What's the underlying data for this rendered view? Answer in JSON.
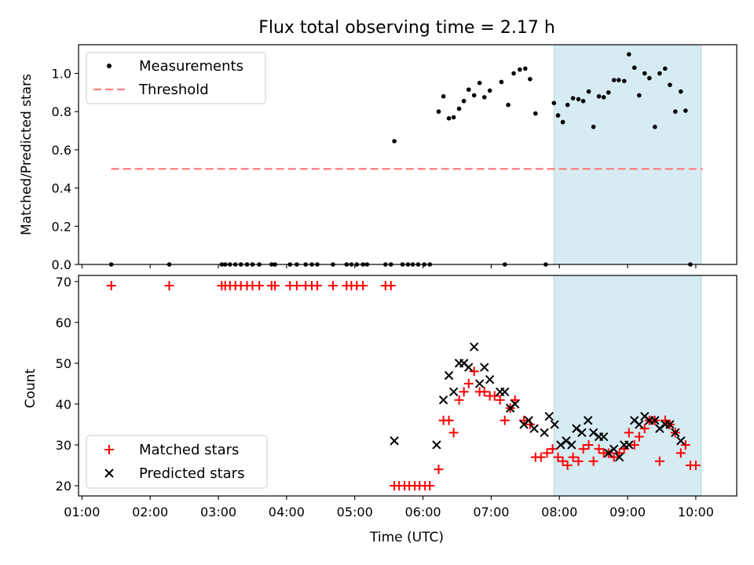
{
  "chart_data": [
    {
      "type": "scatter",
      "title": "Flux total observing time = 2.17 h",
      "ylabel": "Matched/Predicted stars",
      "ylim": [
        0,
        1.15
      ],
      "yticks": [
        "0.0",
        "0.2",
        "0.4",
        "0.6",
        "0.8",
        "1.0"
      ],
      "xlim": [
        0.95,
        10.6
      ],
      "shaded_interval": [
        7.92,
        10.08
      ],
      "legend": {
        "placement": "top-left",
        "entries": [
          {
            "label": "Measurements",
            "marker": "dot",
            "color": "#000000"
          },
          {
            "label": "Threshold",
            "marker": "dashed-line",
            "color": "#ff7f7f"
          }
        ]
      },
      "threshold": {
        "value": 0.5,
        "x_range": [
          1.43,
          10.1
        ]
      },
      "series": [
        {
          "name": "Measurements",
          "points": [
            [
              1.43,
              0
            ],
            [
              2.28,
              0
            ],
            [
              3.05,
              0
            ],
            [
              3.1,
              0
            ],
            [
              3.17,
              0
            ],
            [
              3.25,
              0
            ],
            [
              3.33,
              0
            ],
            [
              3.42,
              0
            ],
            [
              3.5,
              0
            ],
            [
              3.6,
              0
            ],
            [
              3.78,
              0
            ],
            [
              3.83,
              0
            ],
            [
              4.05,
              0
            ],
            [
              4.15,
              0
            ],
            [
              4.28,
              0
            ],
            [
              4.37,
              0
            ],
            [
              4.45,
              0
            ],
            [
              4.68,
              0
            ],
            [
              4.88,
              0
            ],
            [
              4.95,
              0
            ],
            [
              5.03,
              0
            ],
            [
              5.12,
              0
            ],
            [
              5.18,
              0
            ],
            [
              5.45,
              0
            ],
            [
              5.53,
              0
            ],
            [
              5.58,
              0.645
            ],
            [
              5.7,
              0
            ],
            [
              5.78,
              0
            ],
            [
              5.85,
              0
            ],
            [
              5.93,
              0
            ],
            [
              6.02,
              0
            ],
            [
              6.1,
              0
            ],
            [
              6.23,
              0.8
            ],
            [
              6.3,
              0.88
            ],
            [
              6.38,
              0.765
            ],
            [
              6.45,
              0.77
            ],
            [
              6.53,
              0.815
            ],
            [
              6.6,
              0.855
            ],
            [
              6.67,
              0.915
            ],
            [
              6.75,
              0.885
            ],
            [
              6.83,
              0.95
            ],
            [
              6.9,
              0.875
            ],
            [
              6.98,
              0.91
            ],
            [
              7.15,
              0.955
            ],
            [
              7.2,
              0
            ],
            [
              7.25,
              0.835
            ],
            [
              7.33,
              1.0
            ],
            [
              7.42,
              1.02
            ],
            [
              7.5,
              1.025
            ],
            [
              7.57,
              0.97
            ],
            [
              7.65,
              0.79
            ],
            [
              7.8,
              0
            ],
            [
              7.92,
              0.845
            ],
            [
              7.98,
              0.78
            ],
            [
              8.05,
              0.745
            ],
            [
              8.12,
              0.835
            ],
            [
              8.2,
              0.87
            ],
            [
              8.28,
              0.865
            ],
            [
              8.35,
              0.855
            ],
            [
              8.43,
              0.905
            ],
            [
              8.5,
              0.72
            ],
            [
              8.58,
              0.88
            ],
            [
              8.65,
              0.875
            ],
            [
              8.72,
              0.9
            ],
            [
              8.8,
              0.965
            ],
            [
              8.87,
              0.965
            ],
            [
              8.95,
              0.96
            ],
            [
              9.02,
              1.1
            ],
            [
              9.1,
              1.03
            ],
            [
              9.17,
              0.885
            ],
            [
              9.25,
              1.0
            ],
            [
              9.32,
              0.975
            ],
            [
              9.4,
              0.72
            ],
            [
              9.47,
              1.0
            ],
            [
              9.55,
              1.025
            ],
            [
              9.62,
              0.94
            ],
            [
              9.7,
              0.8
            ],
            [
              9.78,
              0.905
            ],
            [
              9.85,
              0.805
            ],
            [
              9.92,
              0
            ]
          ]
        }
      ]
    },
    {
      "type": "scatter",
      "xlabel": "Time (UTC)",
      "ylabel": "Count",
      "ylim": [
        17.5,
        71.5
      ],
      "yticks": [
        "20",
        "30",
        "40",
        "50",
        "60",
        "70"
      ],
      "xlim": [
        0.95,
        10.6
      ],
      "xticks": [
        {
          "v": 1,
          "label": "01:00"
        },
        {
          "v": 2,
          "label": "02:00"
        },
        {
          "v": 3,
          "label": "03:00"
        },
        {
          "v": 4,
          "label": "04:00"
        },
        {
          "v": 5,
          "label": "05:00"
        },
        {
          "v": 6,
          "label": "06:00"
        },
        {
          "v": 7,
          "label": "07:00"
        },
        {
          "v": 8,
          "label": "08:00"
        },
        {
          "v": 9,
          "label": "09:00"
        },
        {
          "v": 10,
          "label": "10:00"
        }
      ],
      "shaded_interval": [
        7.92,
        10.08
      ],
      "legend": {
        "placement": "bottom-left",
        "entries": [
          {
            "label": "Matched stars",
            "marker": "plus",
            "color": "#ff0000"
          },
          {
            "label": "Predicted stars",
            "marker": "x",
            "color": "#000000"
          }
        ]
      },
      "series": [
        {
          "name": "Matched stars",
          "points": [
            [
              1.43,
              69
            ],
            [
              2.28,
              69
            ],
            [
              3.05,
              69
            ],
            [
              3.1,
              69
            ],
            [
              3.17,
              69
            ],
            [
              3.25,
              69
            ],
            [
              3.33,
              69
            ],
            [
              3.42,
              69
            ],
            [
              3.5,
              69
            ],
            [
              3.6,
              69
            ],
            [
              3.78,
              69
            ],
            [
              3.83,
              69
            ],
            [
              4.05,
              69
            ],
            [
              4.15,
              69
            ],
            [
              4.28,
              69
            ],
            [
              4.37,
              69
            ],
            [
              4.45,
              69
            ],
            [
              4.68,
              69
            ],
            [
              4.88,
              69
            ],
            [
              4.95,
              69
            ],
            [
              5.03,
              69
            ],
            [
              5.12,
              69
            ],
            [
              5.45,
              69
            ],
            [
              5.53,
              69
            ],
            [
              5.58,
              20
            ],
            [
              5.65,
              20
            ],
            [
              5.73,
              20
            ],
            [
              5.8,
              20
            ],
            [
              5.88,
              20
            ],
            [
              5.95,
              20
            ],
            [
              6.03,
              20
            ],
            [
              6.1,
              20
            ],
            [
              6.23,
              24
            ],
            [
              6.3,
              36
            ],
            [
              6.38,
              36
            ],
            [
              6.45,
              33
            ],
            [
              6.53,
              41
            ],
            [
              6.6,
              43
            ],
            [
              6.67,
              45
            ],
            [
              6.75,
              48
            ],
            [
              6.83,
              43
            ],
            [
              6.9,
              43
            ],
            [
              6.98,
              42
            ],
            [
              7.05,
              42
            ],
            [
              7.13,
              41
            ],
            [
              7.2,
              36
            ],
            [
              7.28,
              39
            ],
            [
              7.35,
              41
            ],
            [
              7.48,
              36
            ],
            [
              7.57,
              35
            ],
            [
              7.65,
              27
            ],
            [
              7.73,
              27
            ],
            [
              7.82,
              28
            ],
            [
              7.9,
              29
            ],
            [
              7.98,
              27
            ],
            [
              8.05,
              26
            ],
            [
              8.12,
              25
            ],
            [
              8.2,
              27
            ],
            [
              8.28,
              26
            ],
            [
              8.35,
              29
            ],
            [
              8.43,
              30
            ],
            [
              8.5,
              26
            ],
            [
              8.58,
              29
            ],
            [
              8.65,
              28
            ],
            [
              8.72,
              28
            ],
            [
              8.8,
              27
            ],
            [
              8.88,
              28
            ],
            [
              8.95,
              29
            ],
            [
              9.02,
              33
            ],
            [
              9.1,
              30
            ],
            [
              9.17,
              32
            ],
            [
              9.25,
              34
            ],
            [
              9.32,
              36
            ],
            [
              9.4,
              36
            ],
            [
              9.47,
              26
            ],
            [
              9.55,
              36
            ],
            [
              9.62,
              35
            ],
            [
              9.7,
              33
            ],
            [
              9.78,
              28
            ],
            [
              9.85,
              30
            ],
            [
              9.92,
              25
            ],
            [
              10.0,
              25
            ]
          ]
        },
        {
          "name": "Predicted stars",
          "points": [
            [
              5.58,
              31
            ],
            [
              6.2,
              30
            ],
            [
              6.3,
              41
            ],
            [
              6.38,
              47
            ],
            [
              6.45,
              43
            ],
            [
              6.53,
              50
            ],
            [
              6.6,
              50
            ],
            [
              6.67,
              49
            ],
            [
              6.75,
              54
            ],
            [
              6.83,
              45
            ],
            [
              6.9,
              49
            ],
            [
              6.98,
              46
            ],
            [
              7.13,
              43
            ],
            [
              7.2,
              43
            ],
            [
              7.28,
              39
            ],
            [
              7.35,
              40
            ],
            [
              7.48,
              35
            ],
            [
              7.55,
              36
            ],
            [
              7.63,
              34
            ],
            [
              7.78,
              33
            ],
            [
              7.85,
              37
            ],
            [
              7.93,
              35
            ],
            [
              8.02,
              30
            ],
            [
              8.1,
              31
            ],
            [
              8.18,
              30
            ],
            [
              8.25,
              34
            ],
            [
              8.33,
              33
            ],
            [
              8.42,
              36
            ],
            [
              8.5,
              33
            ],
            [
              8.58,
              32
            ],
            [
              8.65,
              32
            ],
            [
              8.72,
              28
            ],
            [
              8.8,
              29
            ],
            [
              8.88,
              27
            ],
            [
              8.95,
              30
            ],
            [
              9.02,
              30
            ],
            [
              9.1,
              36
            ],
            [
              9.17,
              35
            ],
            [
              9.25,
              37
            ],
            [
              9.32,
              36
            ],
            [
              9.4,
              36
            ],
            [
              9.47,
              34
            ],
            [
              9.55,
              35
            ],
            [
              9.62,
              35
            ],
            [
              9.7,
              33
            ],
            [
              9.78,
              31
            ]
          ]
        }
      ]
    }
  ]
}
